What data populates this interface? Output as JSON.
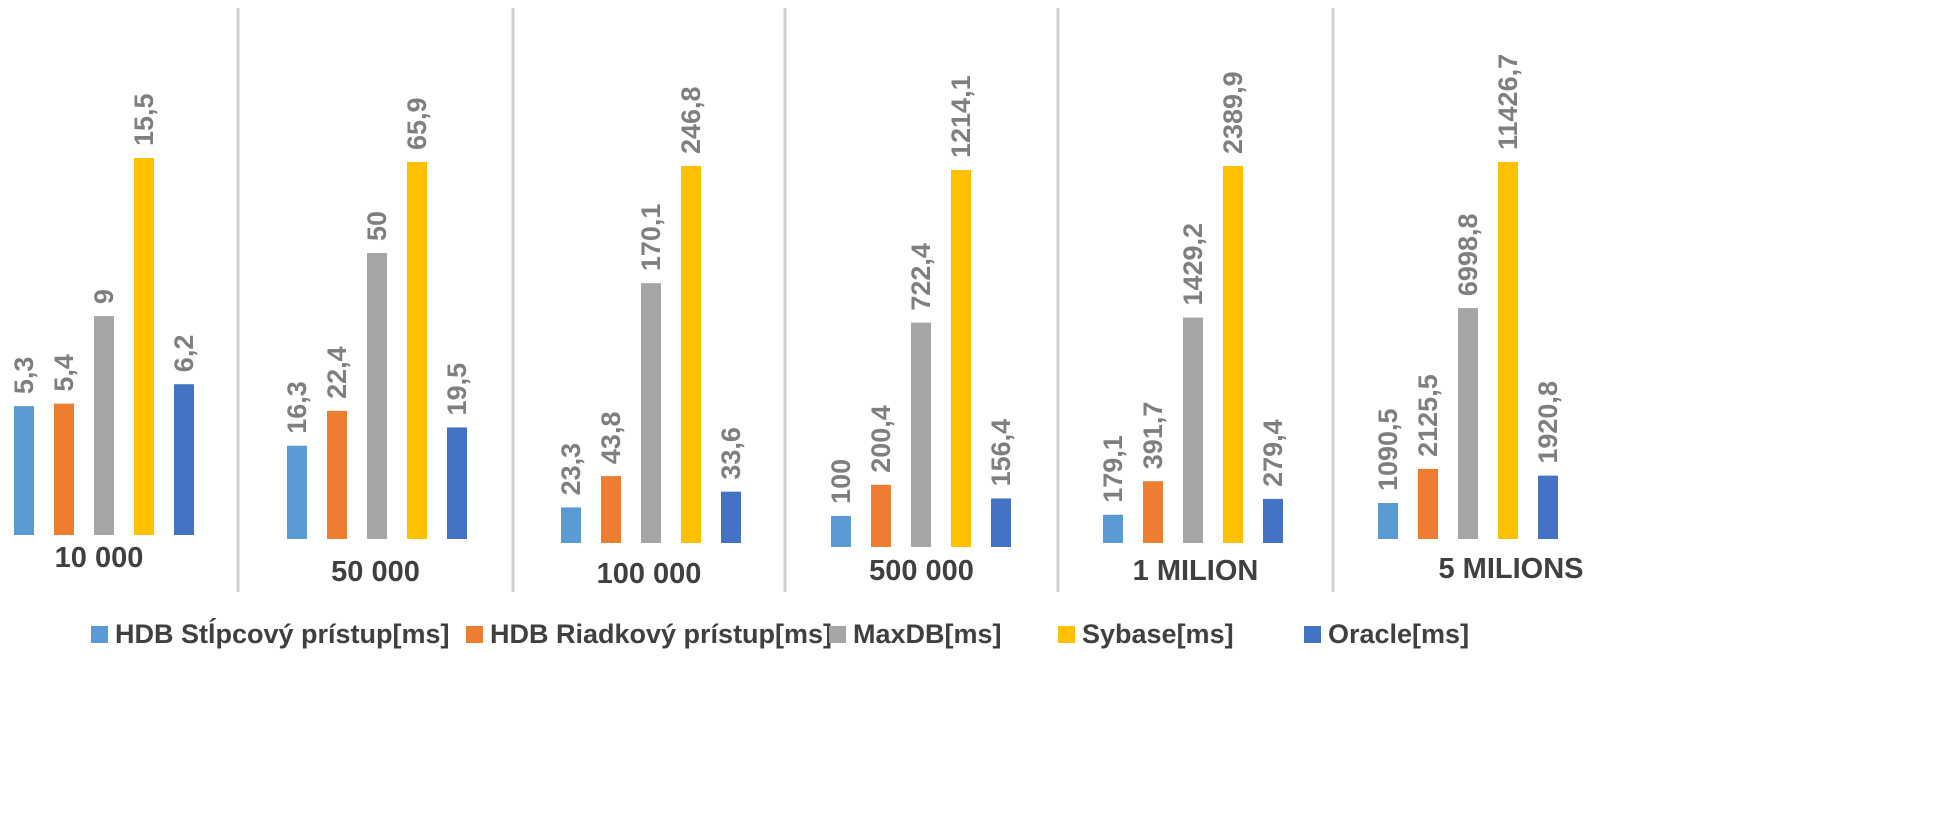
{
  "chart_data": {
    "type": "bar",
    "categories": [
      "10 000",
      "50 000",
      "100 000",
      "500 000",
      "1 MILION",
      "5 MILIONS"
    ],
    "series": [
      {
        "name": "HDB Stĺpcový prístup[ms]",
        "color": "#5b9bd5"
      },
      {
        "name": "HDB Riadkový prístup[ms]",
        "color": "#ed7d31"
      },
      {
        "name": "MaxDB[ms]",
        "color": "#a5a5a5"
      },
      {
        "name": "Sybase[ms]",
        "color": "#ffc000"
      },
      {
        "name": "Oracle[ms]",
        "color": "#4472c4"
      }
    ],
    "panels": [
      {
        "category": "10 000",
        "values": [
          5.3,
          5.4,
          9,
          15.5,
          6.2
        ],
        "labels": [
          "5,3",
          "5,4",
          "9",
          "15,5",
          "6,2"
        ]
      },
      {
        "category": "50 000",
        "values": [
          16.3,
          22.4,
          50,
          65.9,
          19.5
        ],
        "labels": [
          "16,3",
          "22,4",
          "50",
          "65,9",
          "19,5"
        ]
      },
      {
        "category": "100 000",
        "values": [
          23.3,
          43.8,
          170.1,
          246.8,
          33.6
        ],
        "labels": [
          "23,3",
          "43,8",
          "170,1",
          "246,8",
          "33,6"
        ]
      },
      {
        "category": "500 000",
        "values": [
          100,
          200.4,
          722.4,
          1214.1,
          156.4
        ],
        "labels": [
          "100",
          "200,4",
          "722,4",
          "1214,1",
          "156,4"
        ]
      },
      {
        "category": "1 MILION",
        "values": [
          179.1,
          391.7,
          1429.2,
          2389.9,
          279.4
        ],
        "labels": [
          "179,1",
          "391,7",
          "1429,2",
          "2389,9",
          "279,4"
        ]
      },
      {
        "category": "5 MILIONS",
        "values": [
          1090.5,
          2125.5,
          6998.8,
          11426.7,
          1920.8
        ],
        "labels": [
          "1090,5",
          "2125,5",
          "6998,8",
          "11426,7",
          "1920,8"
        ]
      }
    ],
    "title": "",
    "xlabel": "",
    "ylabel": "",
    "grid": false,
    "legend": "bottom",
    "note": "each category panel is scaled independently"
  }
}
